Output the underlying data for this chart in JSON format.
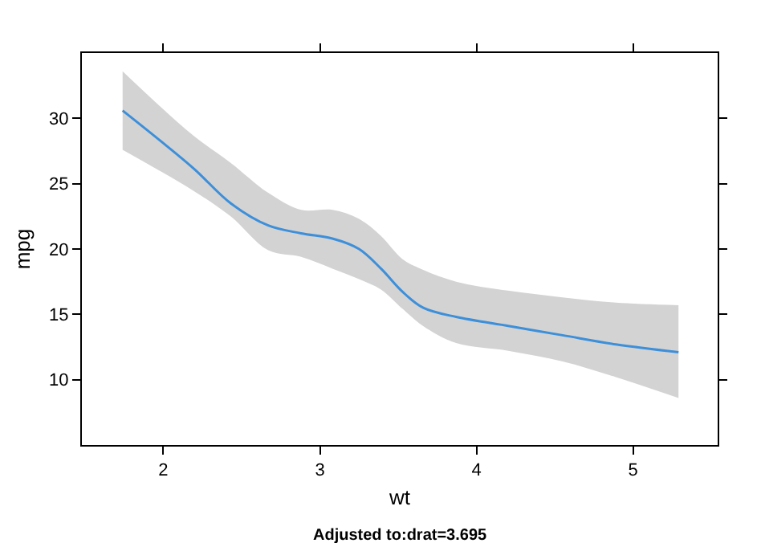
{
  "chart_data": {
    "type": "line",
    "xlabel": "wt",
    "ylabel": "mpg",
    "annotations": [
      "Adjusted to:drat=3.695"
    ],
    "x": [
      1.74,
      1.99,
      2.2,
      2.43,
      2.67,
      2.88,
      3.08,
      3.25,
      3.39,
      3.53,
      3.66,
      3.87,
      4.21,
      4.55,
      4.89,
      5.29
    ],
    "series": [
      {
        "color": "#3d8fd9",
        "values": [
          30.6,
          28.2,
          26.1,
          23.5,
          21.8,
          21.2,
          20.8,
          20.0,
          18.5,
          16.7,
          15.5,
          14.8,
          14.1,
          13.4,
          12.7,
          12.1
        ],
        "upper": [
          33.6,
          30.8,
          28.6,
          26.6,
          24.3,
          23.0,
          23.0,
          22.3,
          21.0,
          19.2,
          18.4,
          17.5,
          16.8,
          16.3,
          15.9,
          15.7
        ],
        "lower": [
          27.6,
          25.9,
          24.4,
          22.5,
          19.9,
          19.4,
          18.5,
          17.7,
          16.9,
          15.4,
          14.1,
          12.8,
          12.2,
          11.4,
          10.2,
          8.6
        ]
      }
    ],
    "xlim": [
      1.48,
      5.54
    ],
    "xticks": [
      2,
      3,
      4,
      5
    ],
    "ylim": [
      5,
      35
    ],
    "yticks": [
      10,
      15,
      20,
      25,
      30
    ],
    "grid": false,
    "marker": "none",
    "line_style": "solid"
  }
}
